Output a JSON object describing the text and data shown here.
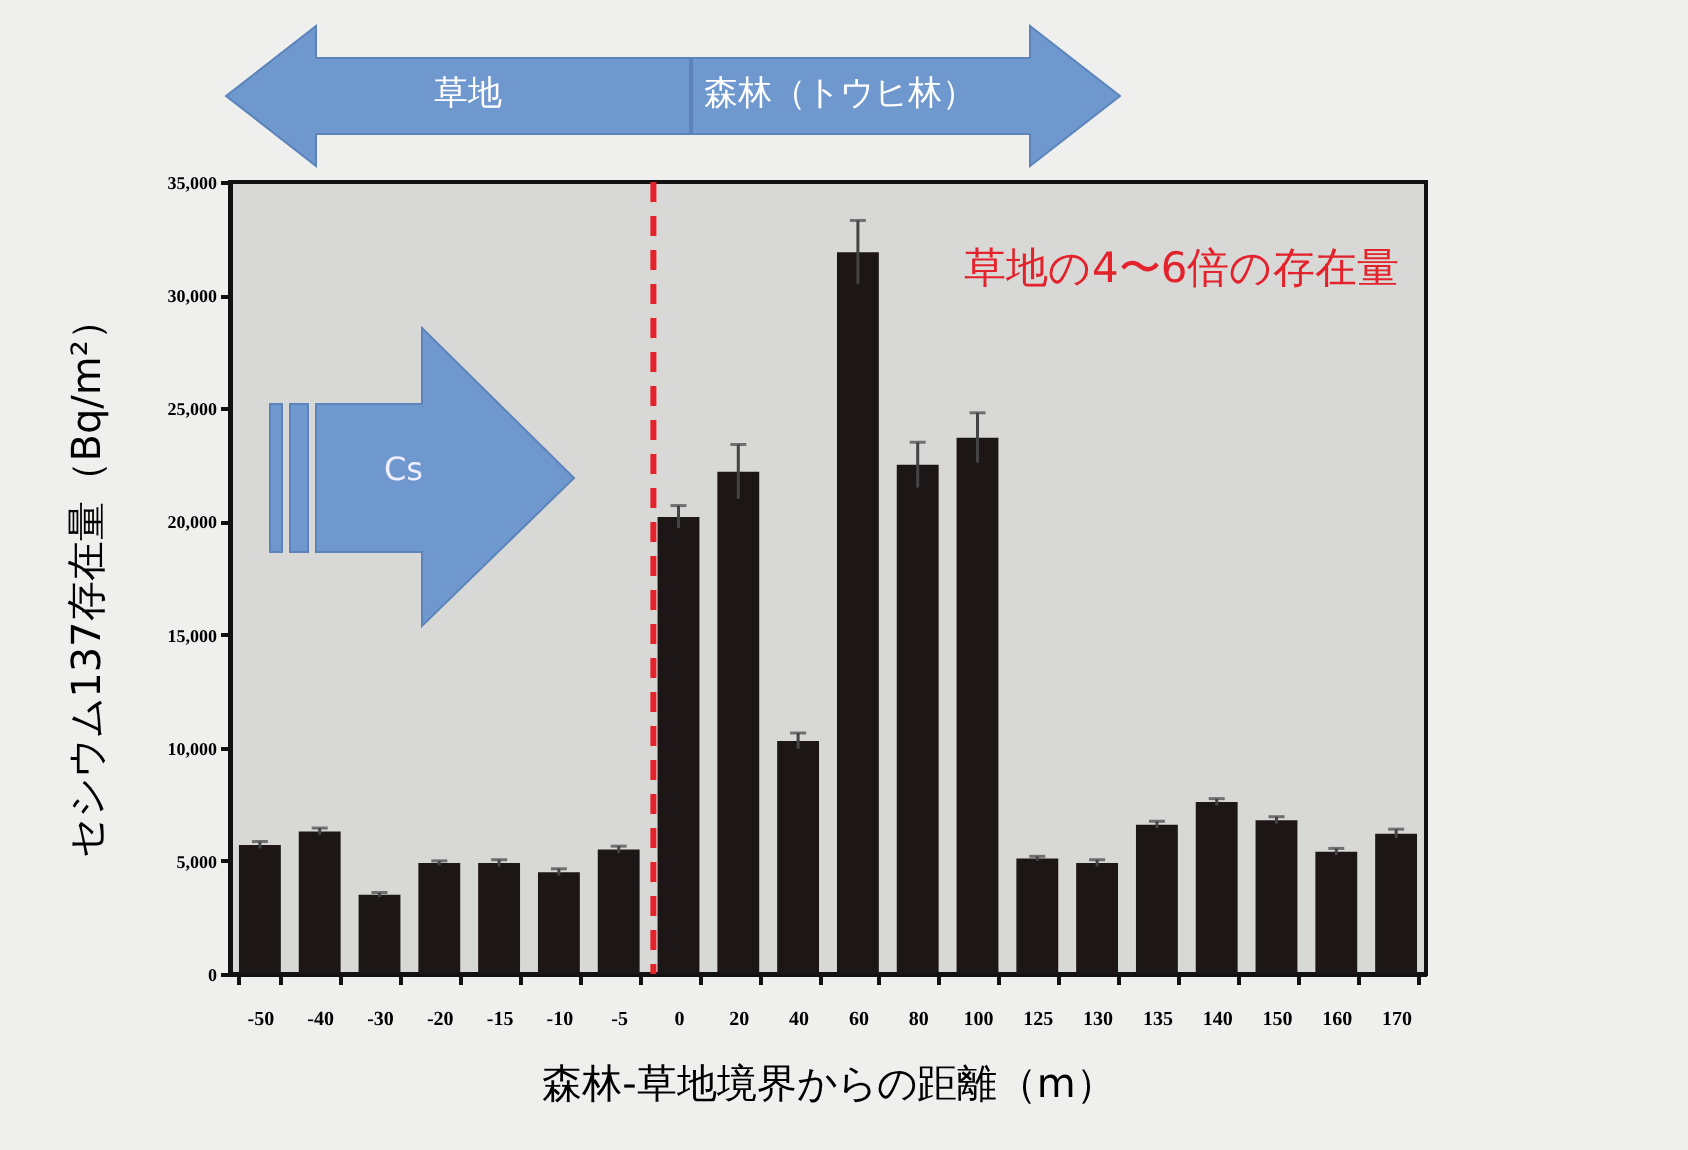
{
  "chart_data": {
    "type": "bar",
    "xlabel": "森林-草地境界からの距離（m）",
    "ylabel": "セシウム137存在量（Bq/m²）",
    "categories": [
      "-50",
      "-40",
      "-30",
      "-20",
      "-15",
      "-10",
      "-5",
      "0",
      "20",
      "40",
      "60",
      "80",
      "100",
      "125",
      "130",
      "135",
      "140",
      "150",
      "160",
      "170"
    ],
    "values": [
      5700,
      6300,
      3500,
      4900,
      4900,
      4500,
      5500,
      20200,
      22200,
      10300,
      31900,
      22500,
      23700,
      5100,
      4900,
      6600,
      7600,
      6800,
      5400,
      6200
    ],
    "errors": [
      150,
      150,
      100,
      100,
      150,
      150,
      150,
      500,
      1200,
      350,
      1400,
      1000,
      1100,
      100,
      150,
      150,
      150,
      150,
      150,
      200
    ],
    "color": "#1c1616",
    "ylim": [
      0,
      35000
    ],
    "yticks": [
      {
        "value": 0,
        "label": "0"
      },
      {
        "value": 5000,
        "label": "5,000"
      },
      {
        "value": 10000,
        "label": "10,000"
      },
      {
        "value": 15000,
        "label": "15,000"
      },
      {
        "value": 20000,
        "label": "20,000"
      },
      {
        "value": 25000,
        "label": "25,000"
      },
      {
        "value": 30000,
        "label": "30,000"
      },
      {
        "value": 35000,
        "label": "35,000"
      }
    ],
    "ref_lines": [
      {
        "axis": "x",
        "value": "0",
        "color": "#e3222b",
        "line_style": "dashed"
      }
    ],
    "annotations": [
      "草地",
      "森林（トウヒ林）",
      "Cs",
      "草地の4〜6倍の存在量"
    ]
  }
}
